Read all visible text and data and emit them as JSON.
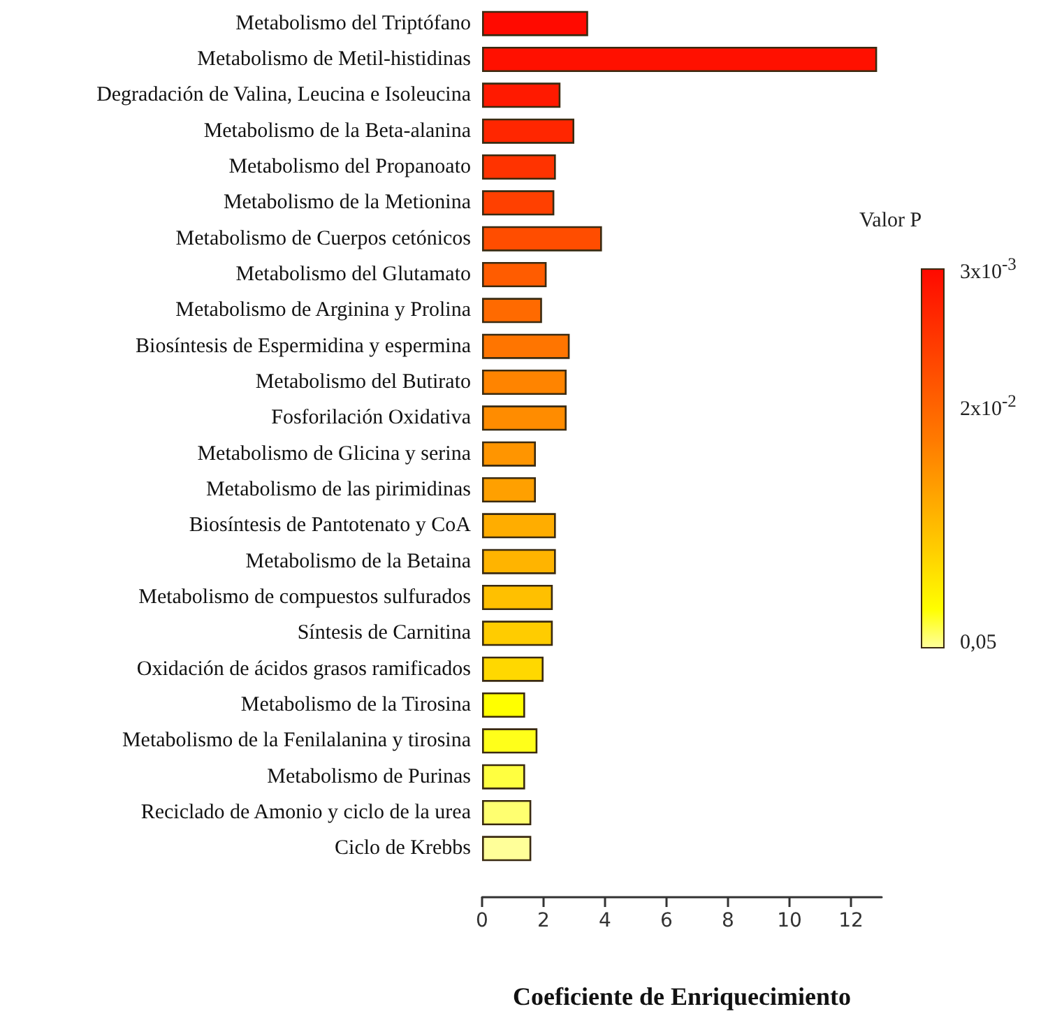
{
  "chart_data": {
    "type": "bar",
    "orientation": "horizontal",
    "xlabel": "Coeficiente de Enriquecimiento",
    "clabel": "Valor P",
    "categories": [
      "Metabolismo del Triptófano",
      "Metabolismo de Metil-histidinas",
      "Degradación de Valina, Leucina e Isoleucina",
      "Metabolismo de la Beta-alanina",
      "Metabolismo del Propanoato",
      "Metabolismo de la Metionina",
      "Metabolismo de Cuerpos cetónicos",
      "Metabolismo del Glutamato",
      "Metabolismo de Arginina y Prolina",
      "Biosíntesis de Espermidina y espermina",
      "Metabolismo del Butirato",
      "Fosforilación Oxidativa",
      "Metabolismo de Glicina y serina",
      "Metabolismo de las pirimidinas",
      "Biosíntesis de Pantotenato y CoA",
      "Metabolismo de la Betaina",
      "Metabolismo de compuestos sulfurados",
      "Síntesis de Carnitina",
      "Oxidación de ácidos grasos ramificados",
      "Metabolismo de la Tirosina",
      "Metabolismo de la Fenilalanina y tirosina",
      "Metabolismo de Purinas",
      "Reciclado de Amonio y ciclo de la urea",
      "Ciclo de Krebbs"
    ],
    "values": [
      3.45,
      12.85,
      2.55,
      3.0,
      2.4,
      2.35,
      3.9,
      2.1,
      1.95,
      2.85,
      2.75,
      2.75,
      1.75,
      1.75,
      2.4,
      2.4,
      2.3,
      2.3,
      2.0,
      1.4,
      1.8,
      1.4,
      1.6,
      1.6
    ],
    "colors": [
      "#ff0a00",
      "#ff1000",
      "#ff1a00",
      "#ff2600",
      "#ff3300",
      "#ff4000",
      "#ff4d00",
      "#ff5c00",
      "#ff6a00",
      "#ff7500",
      "#ff8400",
      "#ff8c00",
      "#ff9500",
      "#ffa000",
      "#ffad00",
      "#ffb400",
      "#ffc000",
      "#ffcc00",
      "#ffd800",
      "#ffff00",
      "#ffff1a",
      "#ffff40",
      "#ffff70",
      "#ffff99"
    ],
    "xlim": [
      0,
      13
    ],
    "xticks": [
      0,
      2,
      4,
      6,
      8,
      10,
      12
    ],
    "clim": [
      0.05,
      0.003
    ],
    "cticks": [
      {
        "value": 0.003,
        "label": "3x10$^{-3}$"
      },
      {
        "value": 0.02,
        "label": "2x10$^{-2}$"
      },
      {
        "value": 0.05,
        "label": "0,05"
      }
    ],
    "grid": false
  }
}
